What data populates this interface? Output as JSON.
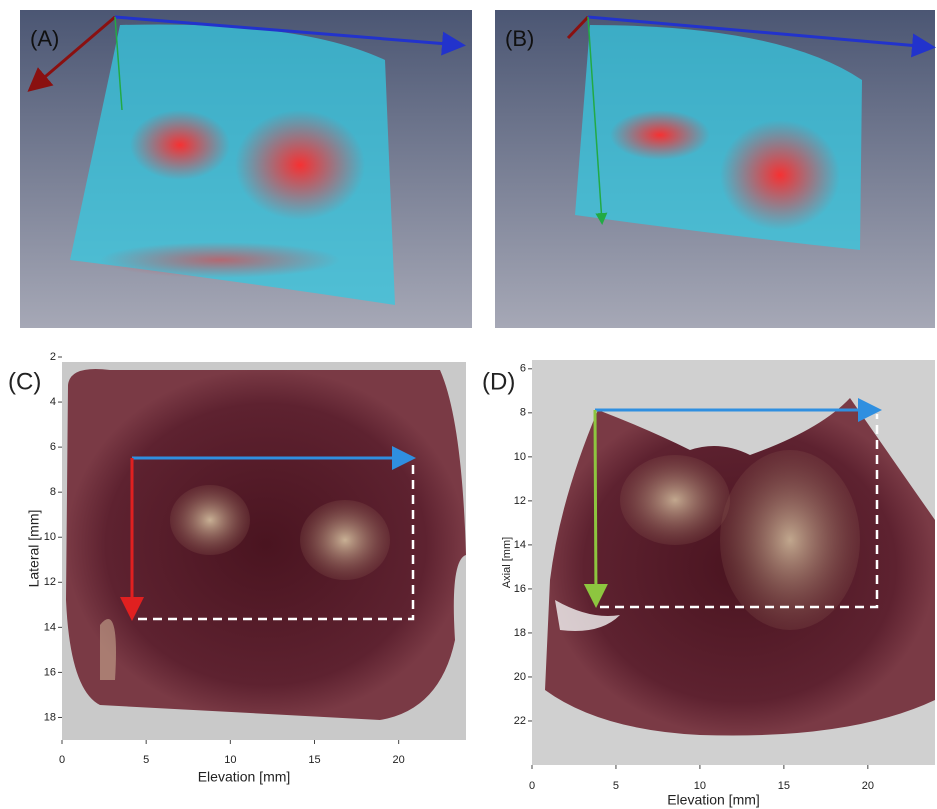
{
  "panels": [
    {
      "label": "(A)"
    },
    {
      "label": "(B)"
    },
    {
      "label": "(C)",
      "x_axis": {
        "title": "Elevation [mm]",
        "lim": [
          0,
          24
        ],
        "ticks": [
          0,
          5,
          10,
          15,
          20
        ]
      },
      "y_axis": {
        "title": "Lateral [mm]",
        "lim": [
          2,
          19
        ],
        "ticks": [
          2,
          4,
          6,
          8,
          10,
          12,
          14,
          16,
          18
        ]
      }
    },
    {
      "label": "(D)",
      "x_axis": {
        "title": "Elevation [mm]",
        "lim": [
          0,
          24
        ],
        "ticks": [
          0,
          5,
          10,
          15,
          20
        ]
      },
      "y_axis": {
        "title": "Axial [mm]",
        "lim": [
          5.6,
          24
        ],
        "ticks": [
          6,
          8,
          10,
          12,
          14,
          16,
          18,
          20,
          22
        ]
      }
    }
  ]
}
